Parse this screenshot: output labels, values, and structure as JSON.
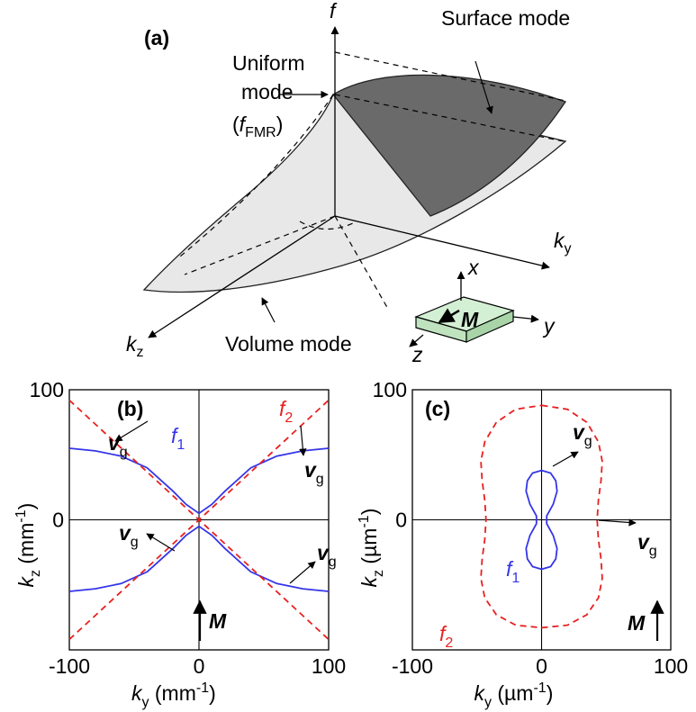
{
  "panel_a": {
    "label": "(a)",
    "f_axis": "f",
    "surface_mode": "Surface mode",
    "uniform_mode": [
      "Uniform",
      "mode"
    ],
    "fmr": {
      "open": "(",
      "symbol": "f",
      "subscript": "FMR",
      "close": ")"
    },
    "ky": {
      "symbol": "k",
      "subscript": "y"
    },
    "kz": {
      "symbol": "k",
      "subscript": "z"
    },
    "volume_mode": "Volume mode",
    "sample": {
      "x": "x",
      "y": "y",
      "z": "z",
      "M": "M"
    }
  },
  "chart_data": [
    {
      "type": "line",
      "panel_label": "(b)",
      "xlabel": {
        "symbol": "k",
        "subscript": "y",
        "unit": " (mm",
        "exponent": "-1",
        "close": ")"
      },
      "ylabel": {
        "symbol": "k",
        "subscript": "z",
        "unit": " (mm",
        "exponent": "-1",
        "close": ")"
      },
      "xlim": [
        -100,
        100
      ],
      "ylim": [
        -100,
        100
      ],
      "xticks": [
        -100,
        0,
        100
      ],
      "yticks": [
        0,
        100
      ],
      "zero_lines": true,
      "series": [
        {
          "color": "#3535e8",
          "dash": false,
          "x": [
            -100,
            -80,
            -60,
            -40,
            -20,
            -10,
            0,
            10,
            20,
            40,
            60,
            80,
            100
          ],
          "values": [
            55,
            53,
            49,
            40,
            22,
            12,
            5,
            12,
            22,
            40,
            49,
            53,
            55
          ]
        },
        {
          "color": "#3535e8",
          "dash": false,
          "x": [
            -100,
            -80,
            -60,
            -40,
            -20,
            -10,
            0,
            10,
            20,
            40,
            60,
            80,
            100
          ],
          "values": [
            -55,
            -53,
            -49,
            -40,
            -22,
            -12,
            -5,
            -12,
            -22,
            -40,
            -49,
            -53,
            -55
          ]
        },
        {
          "color": "#e82020",
          "dash": true,
          "x": [
            -100,
            100
          ],
          "values": [
            92,
            -92
          ]
        },
        {
          "color": "#e82020",
          "dash": true,
          "x": [
            -100,
            100
          ],
          "values": [
            -92,
            92
          ]
        }
      ],
      "curve_labels": {
        "f1": {
          "symbol": "f",
          "subscript": "1"
        },
        "f2": {
          "symbol": "f",
          "subscript": "2"
        }
      },
      "vg": {
        "symbol": "v",
        "subscript": "g"
      },
      "M": "M"
    },
    {
      "type": "line",
      "panel_label": "(c)",
      "xlabel": {
        "symbol": "k",
        "subscript": "y",
        "unit": " (µm",
        "exponent": "-1",
        "close": ")"
      },
      "ylabel": {
        "symbol": "k",
        "subscript": "z",
        "unit": " (µm",
        "exponent": "-1",
        "close": ")"
      },
      "xlim": [
        -100,
        100
      ],
      "ylim": [
        -100,
        100
      ],
      "xticks": [
        -100,
        0,
        100
      ],
      "yticks": [
        0,
        100
      ],
      "zero_lines": true,
      "series": [
        {
          "color": "#e82020",
          "dash": true,
          "x": [
            0,
            20,
            35,
            44,
            47,
            46,
            44,
            43,
            44,
            46,
            47,
            44,
            35,
            20,
            0,
            -20,
            -35,
            -44,
            -47,
            -46,
            -44,
            -43,
            -44,
            -46,
            -47,
            -44,
            -35,
            -20,
            0
          ],
          "values": [
            88,
            85,
            75,
            60,
            45,
            30,
            15,
            0,
            -15,
            -30,
            -45,
            -60,
            -73,
            -81,
            -83,
            -81,
            -73,
            -60,
            -45,
            -30,
            -15,
            0,
            15,
            30,
            45,
            60,
            75,
            85,
            88
          ]
        },
        {
          "color": "#3535e8",
          "dash": false,
          "x": [
            0,
            7,
            11,
            12,
            9,
            4,
            4,
            9,
            12,
            11,
            7,
            0,
            -7,
            -11,
            -12,
            -9,
            -4,
            -4,
            -9,
            -12,
            -11,
            -7,
            0
          ],
          "values": [
            38,
            36,
            30,
            22,
            12,
            3,
            -3,
            -12,
            -22,
            -30,
            -36,
            -38,
            -36,
            -30,
            -22,
            -12,
            -3,
            3,
            12,
            22,
            30,
            36,
            38
          ]
        }
      ],
      "curve_labels": {
        "f1": {
          "symbol": "f",
          "subscript": "1"
        },
        "f2": {
          "symbol": "f",
          "subscript": "2"
        }
      },
      "vg": {
        "symbol": "v",
        "subscript": "g"
      },
      "M": "M"
    }
  ]
}
